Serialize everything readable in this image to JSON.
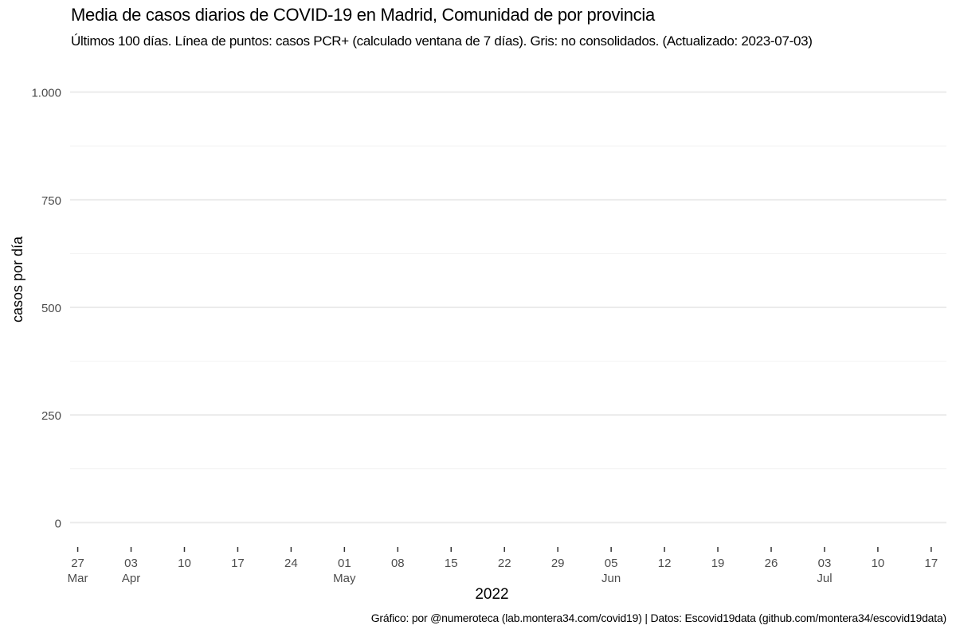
{
  "chart_data": {
    "type": "line",
    "title": "Media de casos diarios de COVID-19 en Madrid, Comunidad de por provincia",
    "subtitle": "Últimos 100 días. Línea de puntos: casos PCR+ (calculado ventana de 7 días). Gris: no consolidados. (Actualizado: 2023-07-03)",
    "xlabel": "2022",
    "ylabel": "casos por día",
    "caption": "Gráfico: por @numeroteca (lab.montera34.com/covid19) | Datos: Escovid19data (github.com/montera34/escovid19data)",
    "ylim": [
      -40,
      1040
    ],
    "xlim": [
      "2022-03-26",
      "2022-07-19"
    ],
    "grid": true,
    "y_ticks": [
      {
        "value": 0,
        "label": "0"
      },
      {
        "value": 250,
        "label": "250"
      },
      {
        "value": 500,
        "label": "500"
      },
      {
        "value": 750,
        "label": "750"
      },
      {
        "value": 1000,
        "label": "1.000"
      }
    ],
    "y_minor_ticks": [
      125,
      375,
      625,
      875
    ],
    "x_ticks": [
      {
        "date": "2022-03-27",
        "label": "27",
        "sublabel": "Mar"
      },
      {
        "date": "2022-04-03",
        "label": "03",
        "sublabel": "Apr"
      },
      {
        "date": "2022-04-10",
        "label": "10",
        "sublabel": ""
      },
      {
        "date": "2022-04-17",
        "label": "17",
        "sublabel": ""
      },
      {
        "date": "2022-04-24",
        "label": "24",
        "sublabel": ""
      },
      {
        "date": "2022-05-01",
        "label": "01",
        "sublabel": "May"
      },
      {
        "date": "2022-05-08",
        "label": "08",
        "sublabel": ""
      },
      {
        "date": "2022-05-15",
        "label": "15",
        "sublabel": ""
      },
      {
        "date": "2022-05-22",
        "label": "22",
        "sublabel": ""
      },
      {
        "date": "2022-05-29",
        "label": "29",
        "sublabel": ""
      },
      {
        "date": "2022-06-05",
        "label": "05",
        "sublabel": "Jun"
      },
      {
        "date": "2022-06-12",
        "label": "12",
        "sublabel": ""
      },
      {
        "date": "2022-06-19",
        "label": "19",
        "sublabel": ""
      },
      {
        "date": "2022-06-26",
        "label": "26",
        "sublabel": ""
      },
      {
        "date": "2022-07-03",
        "label": "03",
        "sublabel": "Jul"
      },
      {
        "date": "2022-07-10",
        "label": "10",
        "sublabel": ""
      },
      {
        "date": "2022-07-17",
        "label": "17",
        "sublabel": ""
      }
    ],
    "series": [],
    "colors": {
      "grid_major": "#ebebeb",
      "grid_minor": "#f2f2f2",
      "tick_text": "#4d4d4d",
      "tick_mark": "#333333"
    }
  }
}
